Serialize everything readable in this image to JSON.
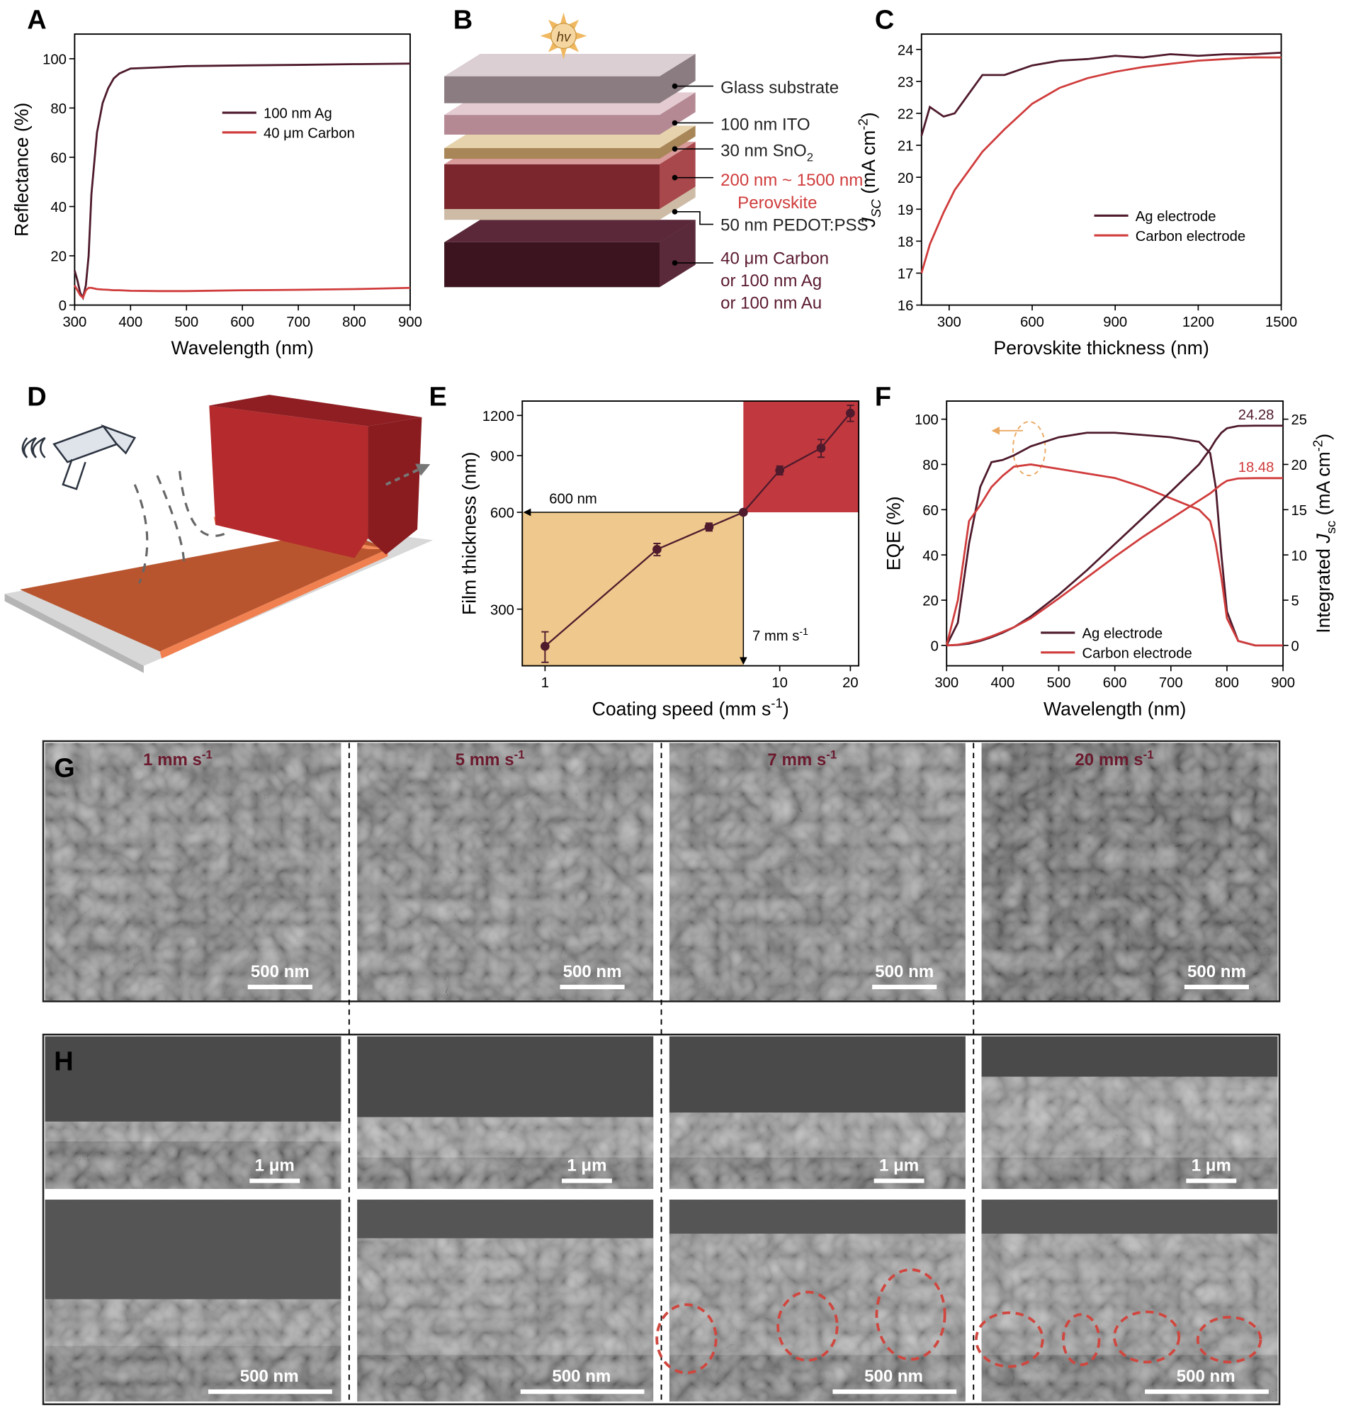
{
  "chart_data": [
    {
      "type": "line",
      "panel_label": "A",
      "xlabel": "Wavelength (nm)",
      "ylabel": "Reflectance (%)",
      "x": [
        300,
        305,
        310,
        315,
        320,
        325,
        330,
        340,
        350,
        360,
        370,
        380,
        400,
        450,
        500,
        600,
        700,
        800,
        900
      ],
      "xlim": [
        300,
        900
      ],
      "xticks": [
        300,
        400,
        500,
        600,
        700,
        800,
        900
      ],
      "ylim": [
        0,
        110
      ],
      "yticks": [
        0,
        20,
        40,
        60,
        80,
        100
      ],
      "legend": "upper center",
      "series": [
        {
          "name": "100 nm Ag",
          "color": "#4e1a2c",
          "values": [
            14,
            10,
            5,
            3,
            8,
            20,
            45,
            70,
            82,
            88,
            92,
            94,
            96,
            96.5,
            97,
            97.3,
            97.5,
            97.8,
            98
          ]
        },
        {
          "name": "40 μm Carbon",
          "color": "#d03c3c",
          "values": [
            8,
            6,
            4,
            3,
            6,
            7,
            7,
            6.5,
            6.3,
            6.2,
            6,
            6,
            5.8,
            5.7,
            5.7,
            6,
            6.2,
            6.5,
            7
          ]
        }
      ]
    },
    {
      "type": "line",
      "panel_label": "C",
      "xlabel": "Perovskite thickness (nm)",
      "ylabel": [
        {
          "text": "J",
          "italic": true
        },
        {
          "text": "SC",
          "sub": true,
          "italic": true
        },
        {
          "text": " (mA cm"
        },
        {
          "text": "-2",
          "sup": true
        },
        {
          "text": ")"
        }
      ],
      "x": [
        200,
        230,
        280,
        320,
        420,
        500,
        600,
        700,
        800,
        900,
        1000,
        1100,
        1200,
        1300,
        1400,
        1500
      ],
      "xlim": [
        200,
        1500
      ],
      "xticks": [
        300,
        600,
        900,
        1200,
        1500
      ],
      "ylim": [
        16,
        24.48
      ],
      "yticks": [
        16,
        17,
        18,
        19,
        20,
        21,
        22,
        23,
        24
      ],
      "legend": "lower right",
      "series": [
        {
          "name": "Ag electrode",
          "color": "#4e1a2c",
          "values": [
            21.3,
            22.2,
            21.9,
            22.0,
            23.2,
            23.2,
            23.5,
            23.65,
            23.7,
            23.8,
            23.75,
            23.85,
            23.8,
            23.85,
            23.85,
            23.9
          ]
        },
        {
          "name": "Carbon electrode",
          "color": "#d03c3c",
          "values": [
            17,
            17.9,
            18.9,
            19.6,
            20.8,
            21.5,
            22.3,
            22.8,
            23.1,
            23.3,
            23.45,
            23.55,
            23.65,
            23.7,
            23.75,
            23.75
          ]
        }
      ]
    },
    {
      "type": "errorbar",
      "panel_label": "E",
      "xlabel": [
        {
          "text": "Coating speed (mm s"
        },
        {
          "text": "-1",
          "sup": true
        },
        {
          "text": ")"
        }
      ],
      "ylabel": "Film thickness (nm)",
      "xlog": true,
      "ylog": true,
      "x": [
        1,
        3,
        5,
        7,
        10,
        15,
        20
      ],
      "values": [
        230,
        460,
        540,
        600,
        810,
        950,
        1220
      ],
      "errors": [
        25,
        20,
        15,
        10,
        25,
        60,
        70
      ],
      "color": "#4e1a2c",
      "xlim": [
        0.8,
        21.7
      ],
      "xticks": [
        1,
        10,
        20
      ],
      "ylim": [
        200,
        1330
      ],
      "yticks": [
        300,
        600,
        900,
        1200
      ],
      "reference": {
        "x": 7,
        "y": 600,
        "label_y": "600 nm",
        "label_x": [
          {
            "text": "7 mm s"
          },
          {
            "text": "-1",
            "sup": true
          }
        ]
      },
      "region_colors": [
        "#eec88c",
        "#c1393f"
      ]
    },
    {
      "type": "line",
      "panel_label": "F",
      "xlabel": "Wavelength (nm)",
      "ylabel": "EQE (%)",
      "y2label": [
        {
          "text": "Integrated "
        },
        {
          "text": "J",
          "italic": true
        },
        {
          "text": "sc",
          "sub": true
        },
        {
          "text": " (mA cm"
        },
        {
          "text": "-2",
          "sup": true
        },
        {
          "text": ")"
        }
      ],
      "x": [
        300,
        320,
        340,
        360,
        380,
        400,
        420,
        450,
        500,
        550,
        600,
        650,
        700,
        750,
        770,
        780,
        790,
        800,
        820,
        850,
        900
      ],
      "xlim": [
        300,
        900
      ],
      "xticks": [
        300,
        400,
        500,
        600,
        700,
        800,
        900
      ],
      "ylim": [
        -9,
        108
      ],
      "yticks": [
        0,
        20,
        40,
        60,
        80,
        100
      ],
      "y2lim": [
        -2.25,
        27
      ],
      "y2ticks": [
        0,
        5,
        10,
        15,
        20,
        25
      ],
      "legend": "lower center",
      "series": [
        {
          "name": "Ag electrode",
          "color": "#4e1a2c",
          "values": [
            0,
            10,
            45,
            70,
            81,
            82,
            84,
            88,
            92,
            94,
            94,
            93,
            92,
            90,
            85,
            70,
            40,
            15,
            2,
            0,
            0
          ]
        },
        {
          "name": "Carbon electrode",
          "color": "#d03c3c",
          "values": [
            0,
            20,
            55,
            62,
            70,
            75,
            79,
            80,
            78,
            76,
            74,
            70,
            65,
            60,
            55,
            45,
            30,
            12,
            2,
            0,
            0
          ]
        },
        {
          "color": "#4e1a2c",
          "axis": "y2",
          "end_label": true,
          "values": [
            0,
            0.05,
            0.2,
            0.5,
            0.9,
            1.4,
            2.0,
            3.2,
            5.6,
            8.3,
            11.2,
            14.1,
            17.0,
            20.0,
            21.7,
            22.7,
            23.5,
            24.0,
            24.25,
            24.28,
            24.28
          ]
        },
        {
          "color": "#d03c3c",
          "axis": "y2",
          "end_label": true,
          "values": [
            0,
            0.08,
            0.3,
            0.6,
            1.0,
            1.5,
            2.0,
            3.0,
            5.2,
            7.5,
            9.8,
            12.0,
            14.0,
            16.0,
            16.8,
            17.3,
            17.8,
            18.2,
            18.45,
            18.48,
            18.48
          ]
        }
      ]
    }
  ],
  "diagram_b": {
    "panel_label": "B",
    "light": "hv",
    "labels": [
      "Glass substrate",
      "100 nm ITO",
      [
        {
          "text": "30 nm SnO"
        },
        {
          "text": "2",
          "sub": true
        }
      ],
      "200 nm ~ 1500 nm",
      "Perovskite",
      "50 nm PEDOT:PSS",
      "40 μm Carbon",
      "or 100 nm Ag",
      "or 100 nm Au"
    ]
  },
  "diagram_d": {
    "panel_label": "D"
  },
  "sem_g": {
    "panel_label": "G",
    "labels": [
      [
        {
          "text": "1 mm s"
        },
        {
          "text": "-1",
          "sup": true
        }
      ],
      [
        {
          "text": "5 mm s"
        },
        {
          "text": "-1",
          "sup": true
        }
      ],
      [
        {
          "text": "7 mm s"
        },
        {
          "text": "-1",
          "sup": true
        }
      ],
      [
        {
          "text": "20 mm s"
        },
        {
          "text": "-1",
          "sup": true
        }
      ]
    ],
    "scale_bars": [
      "500 nm",
      "500 nm",
      "500 nm",
      "500 nm"
    ]
  },
  "sem_h": {
    "panel_label": "H",
    "scale_bars_top": [
      "1 μm",
      "1 μm",
      "1 μm",
      "1 μm"
    ],
    "scale_bars_bottom": [
      "500 nm",
      "500 nm",
      "500 nm",
      "500 nm"
    ]
  }
}
